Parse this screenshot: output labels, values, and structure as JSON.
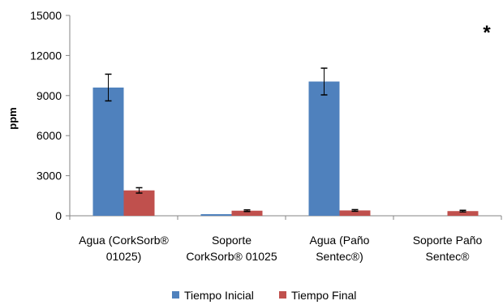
{
  "chart_data": {
    "type": "bar",
    "title": "",
    "xlabel": "",
    "ylabel": "ppm",
    "ylim": [
      0,
      15000
    ],
    "yticks": [
      0,
      3000,
      6000,
      9000,
      12000,
      15000
    ],
    "ytick_labels": [
      "0",
      "3000",
      "6000",
      "9000",
      "12000",
      "15000"
    ],
    "grid": false,
    "legend_position": "bottom",
    "annotation": "*",
    "categories": [
      [
        "Agua (CorkSorb®",
        "01025)"
      ],
      [
        "Soporte",
        "CorkSorb® 01025"
      ],
      [
        "Agua (Paño",
        "Sentec®)"
      ],
      [
        "Soporte Paño",
        "Sentec®"
      ]
    ],
    "series": [
      {
        "name": "Tiempo Inicial",
        "color": "#4F81BD",
        "values": [
          9600,
          120,
          10050,
          0
        ],
        "errors": [
          1000,
          0,
          1000,
          0
        ]
      },
      {
        "name": "Tiempo Final",
        "color": "#C0504D",
        "values": [
          1900,
          380,
          400,
          350
        ],
        "errors": [
          200,
          60,
          60,
          60
        ]
      }
    ]
  }
}
